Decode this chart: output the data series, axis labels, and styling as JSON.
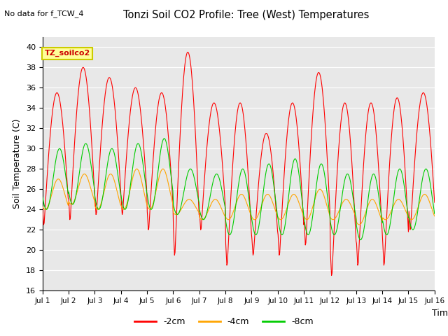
{
  "title": "Tonzi Soil CO2 Profile: Tree (West) Temperatures",
  "subtitle": "No data for f_TCW_4",
  "ylabel": "Soil Temperature (C)",
  "xlabel": "Time",
  "annotation": "TZ_soilco2",
  "ylim": [
    16,
    41
  ],
  "yticks": [
    16,
    18,
    20,
    22,
    24,
    26,
    28,
    30,
    32,
    34,
    36,
    38,
    40
  ],
  "xtick_labels": [
    "Jul 1",
    "Jul 2",
    "Jul 3",
    "Jul 4",
    "Jul 5",
    "Jul 6",
    "Jul 7",
    "Jul 8",
    "Jul 9",
    "Jul 10",
    "Jul 11",
    "Jul 12",
    "Jul 13",
    "Jul 14",
    "Jul 15",
    "Jul 16"
  ],
  "colors": {
    "neg2cm": "#ff0000",
    "neg4cm": "#ffa500",
    "neg8cm": "#00cc00",
    "bg_plot": "#e8e8e8",
    "bg_outer": "#ffffff",
    "grid": "#ffffff",
    "annotation_bg": "#ffff99",
    "annotation_border": "#cccc00"
  },
  "legend_entries": [
    "-2cm",
    "-4cm",
    "-8cm"
  ],
  "num_days": 15,
  "points_per_day": 48,
  "peaks2": [
    35.5,
    38.0,
    37.0,
    36.0,
    35.5,
    39.5,
    34.5,
    34.5,
    31.5,
    34.5,
    37.5,
    34.5,
    34.5,
    35.0,
    35.5
  ],
  "troughs2": [
    22.5,
    23.0,
    23.5,
    23.5,
    22.0,
    19.5,
    22.0,
    18.5,
    19.5,
    19.5,
    20.5,
    17.5,
    18.5,
    18.5,
    22.0
  ],
  "peaks4": [
    27.0,
    27.5,
    27.5,
    28.0,
    28.0,
    25.0,
    25.0,
    25.5,
    25.5,
    25.5,
    26.0,
    25.0,
    25.0,
    25.0,
    25.5
  ],
  "troughs4": [
    24.0,
    24.5,
    24.0,
    24.0,
    24.0,
    23.5,
    23.0,
    23.0,
    23.0,
    23.0,
    23.0,
    23.0,
    22.5,
    23.0,
    23.0
  ],
  "peaks8": [
    30.0,
    30.5,
    30.0,
    30.5,
    31.0,
    28.0,
    27.5,
    28.0,
    28.5,
    29.0,
    28.5,
    27.5,
    27.5,
    28.0,
    28.0
  ],
  "troughs8": [
    24.0,
    24.5,
    24.0,
    24.0,
    24.0,
    23.5,
    23.0,
    21.5,
    21.5,
    21.5,
    21.5,
    21.5,
    21.0,
    21.5,
    22.0
  ],
  "figsize": [
    6.4,
    4.8
  ],
  "dpi": 100
}
